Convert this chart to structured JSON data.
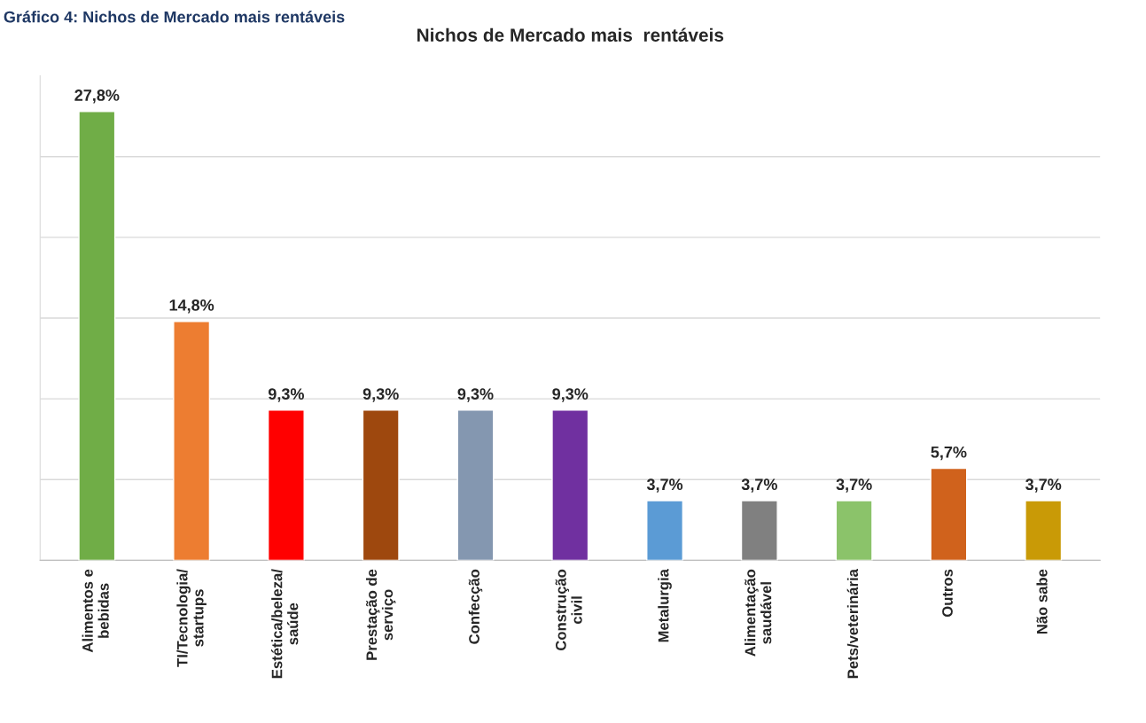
{
  "chart_data": {
    "type": "bar",
    "title": "Nichos de Mercado mais  rentáveis",
    "annotations": [
      "Gráfico 4: Nichos de Mercado mais rentáveis"
    ],
    "categories": [
      "Alimentos e\nbebidas",
      "TI/Tecnologia/\nstartups",
      "Estética/beleza/\nsaúde",
      "Prestação de\nserviço",
      "Confecção",
      "Construção\ncivil",
      "Metalurgia",
      "Alimentação\nsaudável",
      "Pets/veterinária",
      "Outros",
      "Não sabe"
    ],
    "values": [
      27.8,
      14.8,
      9.3,
      9.3,
      9.3,
      9.3,
      3.7,
      3.7,
      3.7,
      5.7,
      3.7
    ],
    "value_labels": [
      "27,8%",
      "14,8%",
      "9,3%",
      "9,3%",
      "9,3%",
      "9,3%",
      "3,7%",
      "3,7%",
      "3,7%",
      "5,7%",
      "3,7%"
    ],
    "colors": [
      "#70ad47",
      "#ed7d31",
      "#ff0000",
      "#9e480e",
      "#8497b0",
      "#7030a0",
      "#5b9bd5",
      "#808080",
      "#8bc36a",
      "#d0621c",
      "#c99a06"
    ],
    "ylim": [
      0,
      30
    ],
    "yticks": [
      {
        "value": 0,
        "label": null
      },
      {
        "value": 5,
        "label": null
      },
      {
        "value": 10,
        "label": null
      },
      {
        "value": 15,
        "label": null
      },
      {
        "value": 20,
        "label": null
      },
      {
        "value": 25,
        "label": null
      }
    ],
    "tick_labels": "x",
    "grid": "y"
  }
}
